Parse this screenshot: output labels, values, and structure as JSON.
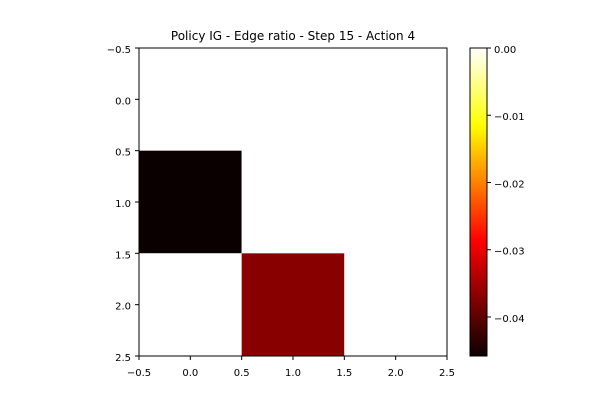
{
  "chart_data": {
    "type": "heatmap",
    "title": "Policy IG - Edge ratio - Step 15 - Action 4",
    "xlabel": "",
    "ylabel": "",
    "xlim": [
      -0.5,
      2.5
    ],
    "ylim": [
      2.5,
      -0.5
    ],
    "x_ticks": [
      "−0.5",
      "0.0",
      "0.5",
      "1.0",
      "1.5",
      "2.0",
      "2.5"
    ],
    "y_ticks": [
      "−0.5",
      "0.0",
      "0.5",
      "1.0",
      "1.5",
      "2.0",
      "2.5"
    ],
    "x_tick_values": [
      -0.5,
      0.0,
      0.5,
      1.0,
      1.5,
      2.0,
      2.5
    ],
    "y_tick_values": [
      -0.5,
      0.0,
      0.5,
      1.0,
      1.5,
      2.0,
      2.5
    ],
    "values": [
      [
        0.0,
        0.0,
        0.0
      ],
      [
        -0.0458,
        0.0,
        0.0
      ],
      [
        0.0,
        -0.037,
        0.0
      ]
    ],
    "colormap": "hot",
    "colorbar": {
      "vmin": -0.0458,
      "vmax": 0.0,
      "ticks": [
        "0.00",
        "−0.01",
        "−0.02",
        "−0.03",
        "−0.04"
      ],
      "tick_values": [
        0.0,
        -0.01,
        -0.02,
        -0.03,
        -0.04
      ]
    },
    "grid": false
  }
}
